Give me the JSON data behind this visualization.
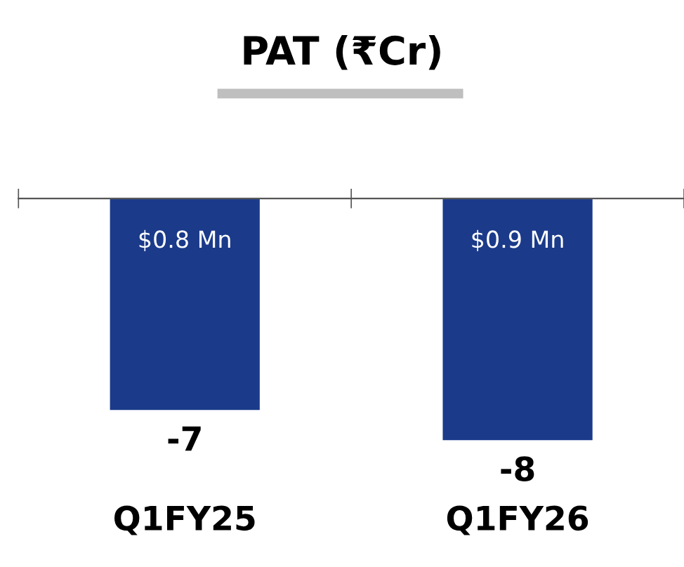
{
  "chart_data": {
    "type": "bar",
    "title": "PAT (₹Cr)",
    "categories": [
      "Q1FY25",
      "Q1FY26"
    ],
    "values": [
      -7,
      -8
    ],
    "color": "#1b3a8a",
    "data_labels": true,
    "grid": false,
    "legend": false,
    "annotations": [
      "$0.8 Mn",
      "$0.9 Mn"
    ]
  }
}
